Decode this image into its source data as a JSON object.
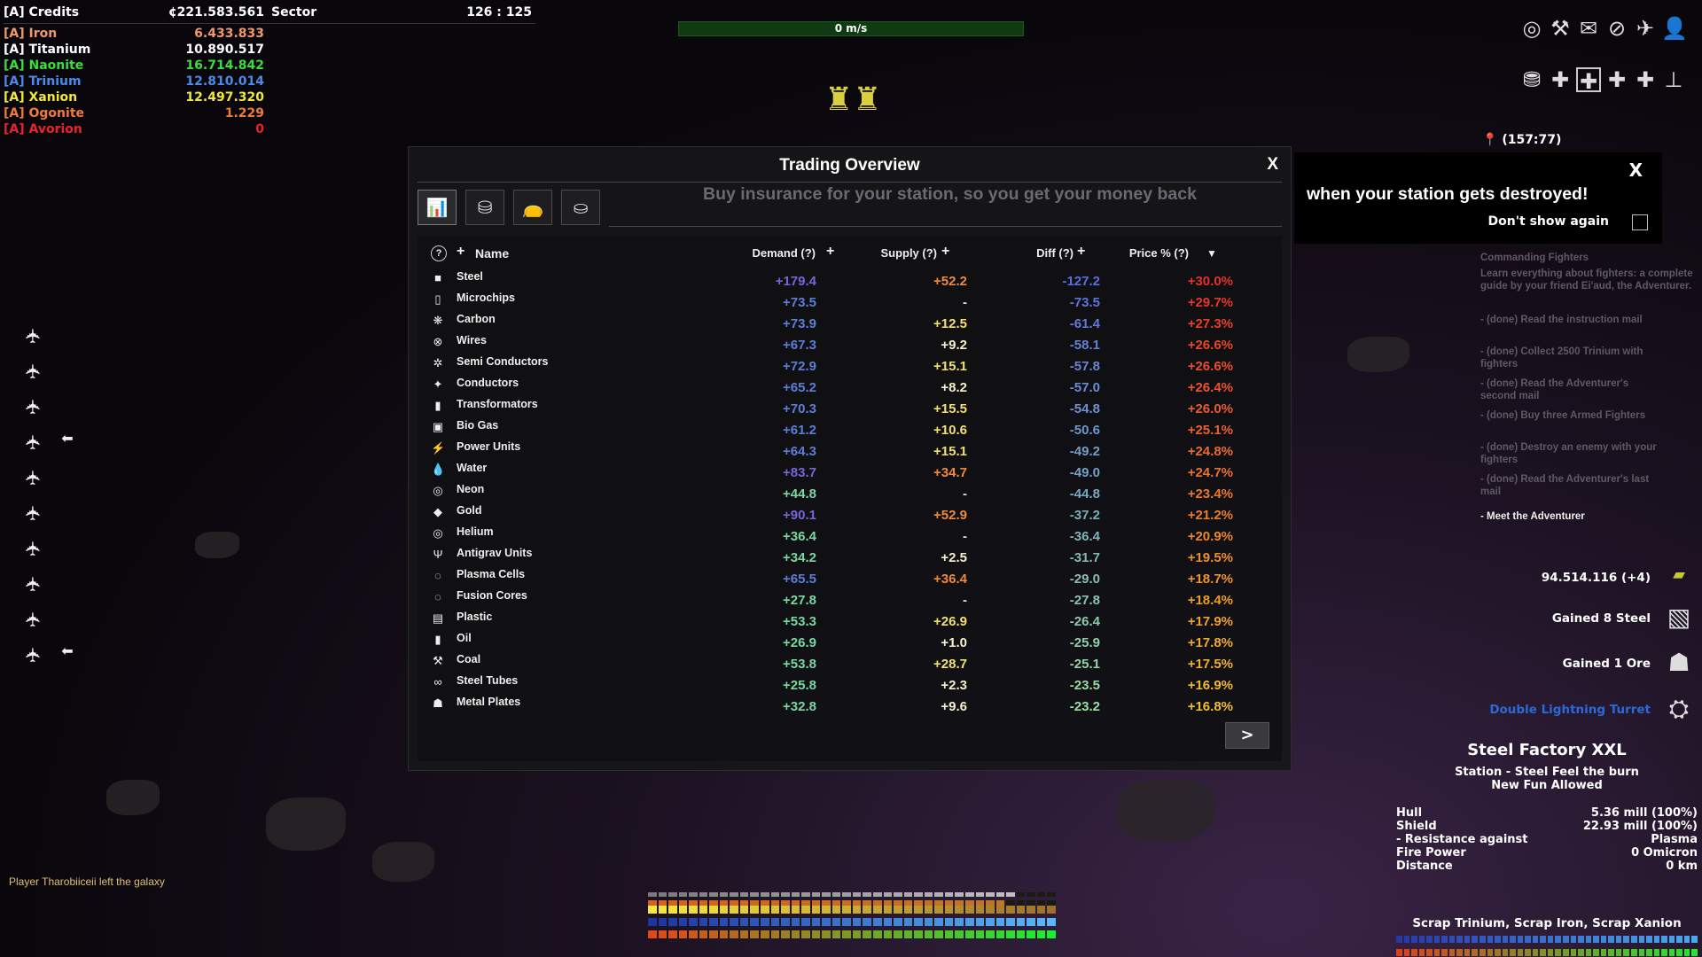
{
  "hud": {
    "credits_label": "[A] Credits",
    "credits_value": "¢221.583.561",
    "sector_label": "Sector",
    "sector_value": "126 : 125",
    "resources": [
      {
        "label": "[A] Iron",
        "value": "6.433.833",
        "color": "#f0986a"
      },
      {
        "label": "[A] Titanium",
        "value": "10.890.517",
        "color": "#ffffff"
      },
      {
        "label": "[A] Naonite",
        "value": "16.714.842",
        "color": "#3ddc3d"
      },
      {
        "label": "[A] Trinium",
        "value": "12.810.014",
        "color": "#4a8ae8"
      },
      {
        "label": "[A] Xanion",
        "value": "12.497.320",
        "color": "#f0e83a"
      },
      {
        "label": "[A] Ogonite",
        "value": "1.229",
        "color": "#f07a3a"
      },
      {
        "label": "[A] Avorion",
        "value": "0",
        "color": "#e8242a"
      }
    ],
    "speed": "0 m/s",
    "chat": "Player Tharobiiceii left the galaxy",
    "coordinates": "(157:77)",
    "top_icons": [
      "strategy-icon",
      "build-icon",
      "mail-icon",
      "compass-icon",
      "ship-icon",
      "player-icon"
    ],
    "second_icons": [
      "trade-icon",
      "puzzle-icon",
      "puzzle-icon",
      "puzzle-icon",
      "puzzle-icon",
      "station-icon"
    ],
    "bottom_bars": [
      {
        "color": "#8a8a8a",
        "fill": 0.9
      },
      {
        "color": "#d8641e",
        "fill": 0.875
      },
      {
        "color": "#e8d040",
        "fill": 1.0
      },
      {
        "color": "#2e5ec8",
        "fill": 1.0
      },
      {
        "color": "#e05020",
        "fill": 1.0
      }
    ]
  },
  "trading": {
    "title": "Trading Overview",
    "close": "X",
    "tabs": [
      "chart-icon",
      "goods-icon",
      "bag-icon",
      "coins-icon"
    ],
    "headers": {
      "help": "?",
      "add": "+",
      "name": "Name",
      "demand": "Demand (?)",
      "supply": "Supply (?)",
      "diff": "Diff (?)",
      "price": "Price % (?)",
      "sort": "▼"
    },
    "rows": [
      [
        "Steel",
        "+179.4",
        "+52.2",
        "-127.2",
        "+30.0%"
      ],
      [
        "Microchips",
        "+73.5",
        "-",
        "-73.5",
        "+29.7%"
      ],
      [
        "Carbon",
        "+73.9",
        "+12.5",
        "-61.4",
        "+27.3%"
      ],
      [
        "Wires",
        "+67.3",
        "+9.2",
        "-58.1",
        "+26.6%"
      ],
      [
        "Semi Conductors",
        "+72.9",
        "+15.1",
        "-57.8",
        "+26.6%"
      ],
      [
        "Conductors",
        "+65.2",
        "+8.2",
        "-57.0",
        "+26.4%"
      ],
      [
        "Transformators",
        "+70.3",
        "+15.5",
        "-54.8",
        "+26.0%"
      ],
      [
        "Bio Gas",
        "+61.2",
        "+10.6",
        "-50.6",
        "+25.1%"
      ],
      [
        "Power Units",
        "+64.3",
        "+15.1",
        "-49.2",
        "+24.8%"
      ],
      [
        "Water",
        "+83.7",
        "+34.7",
        "-49.0",
        "+24.7%"
      ],
      [
        "Neon",
        "+44.8",
        "-",
        "-44.8",
        "+23.4%"
      ],
      [
        "Gold",
        "+90.1",
        "+52.9",
        "-37.2",
        "+21.2%"
      ],
      [
        "Helium",
        "+36.4",
        "-",
        "-36.4",
        "+20.9%"
      ],
      [
        "Antigrav Units",
        "+34.2",
        "+2.5",
        "-31.7",
        "+19.5%"
      ],
      [
        "Plasma Cells",
        "+65.5",
        "+36.4",
        "-29.0",
        "+18.7%"
      ],
      [
        "Fusion Cores",
        "+27.8",
        "-",
        "-27.8",
        "+18.4%"
      ],
      [
        "Plastic",
        "+53.3",
        "+26.9",
        "-26.4",
        "+17.9%"
      ],
      [
        "Oil",
        "+26.9",
        "+1.0",
        "-25.9",
        "+17.8%"
      ],
      [
        "Coal",
        "+53.8",
        "+28.7",
        "-25.1",
        "+17.5%"
      ],
      [
        "Steel Tubes",
        "+25.8",
        "+2.3",
        "-23.5",
        "+16.9%"
      ],
      [
        "Metal Plates",
        "+32.8",
        "+9.6",
        "-23.2",
        "+16.8%"
      ]
    ],
    "row_icons": [
      "■",
      "▯",
      "❋",
      "⊗",
      "✲",
      "✦",
      "▮",
      "▣",
      "⚡",
      "💧",
      "◎",
      "◆",
      "◎",
      "Ψ",
      "◌",
      "◌",
      "▤",
      "▮",
      "⚒",
      "∞",
      "☗"
    ],
    "next": ">"
  },
  "insurance": {
    "hint": "Buy insurance for your station, so you get your money back",
    "popup_text": "when your station gets destroyed!",
    "close": "X",
    "dont_show": "Don't show again",
    "checked": false
  },
  "missions": {
    "title": "Commanding Fighters",
    "desc": "Learn everything about fighters: a complete guide by your friend Ei'aud, the Adventurer.",
    "items": [
      "- (done) Read the instruction mail",
      "- (done) Collect 2500 Trinium with fighters",
      "- (done) Read the Adventurer's second mail",
      "- (done) Buy three Armed Fighters",
      "- (done) Destroy an enemy with your fighters",
      "- (done) Read the Adventurer's last mail"
    ],
    "current": "- Meet the Adventurer"
  },
  "notifications": [
    {
      "text": "94.514.116 (+4)",
      "color": "#ffffff",
      "icon": "credits-icon"
    },
    {
      "text": "Gained 8 Steel",
      "color": "#ffffff",
      "icon": "steel-icon"
    },
    {
      "text": "Gained 1 Ore",
      "color": "#ffffff",
      "icon": "ore-icon"
    },
    {
      "text": "Double Lightning Turret",
      "color": "#2a6ad8",
      "icon": "turret-icon"
    }
  ],
  "target": {
    "name": "Steel Factory XXL",
    "subtitle1": "Station - Steel Feel the burn",
    "subtitle2": "New Fun Allowed",
    "stats": [
      [
        "Hull",
        "5.36 mill (100%)"
      ],
      [
        "Shield",
        "22.93 mill (100%)"
      ],
      [
        "- Resistance against",
        "Plasma"
      ],
      [
        "Fire Power",
        "0  Omicron"
      ],
      [
        "Distance",
        "0 km"
      ]
    ],
    "loot": "Scrap Trinium, Scrap Iron, Scrap Xanion",
    "shield_fill": 1.0,
    "hull_fill": 1.0
  },
  "fighters": {
    "count": 10,
    "arrows": [
      3,
      9
    ]
  }
}
